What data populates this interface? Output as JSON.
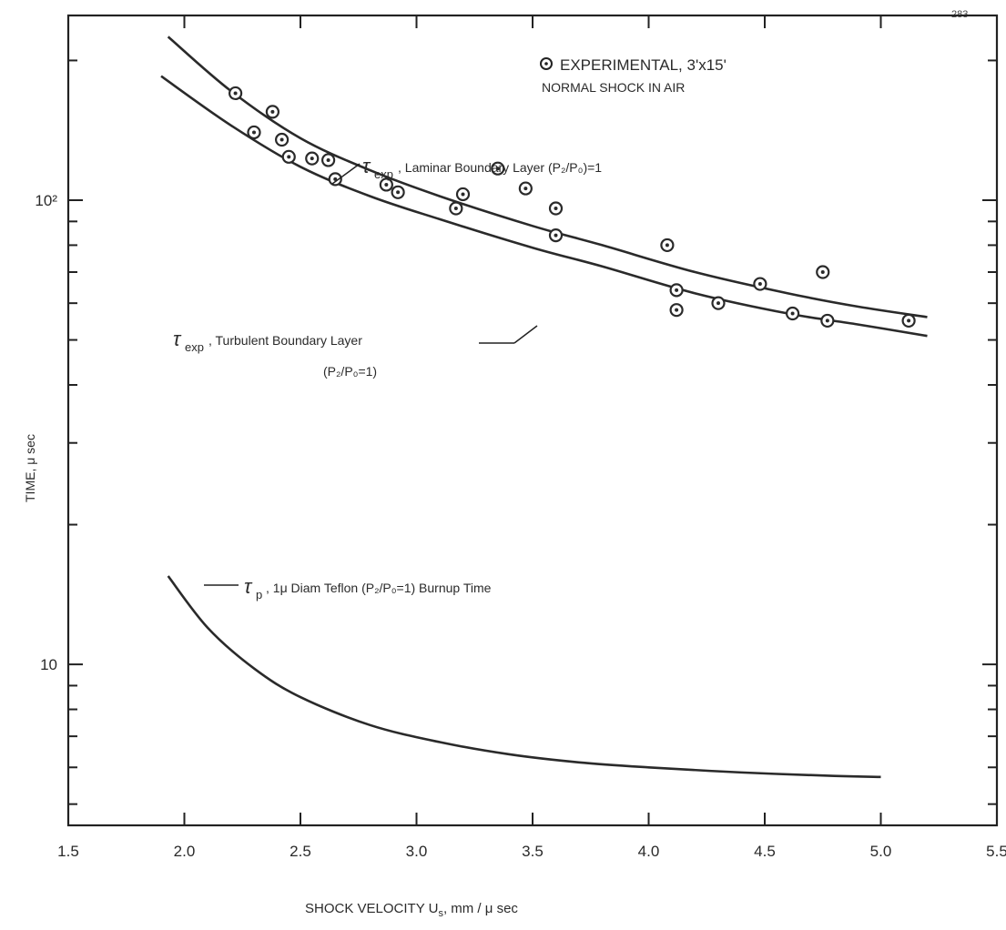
{
  "page_number": "283",
  "chart_data": {
    "type": "line",
    "xlabel": "SHOCK VELOCITY U",
    "xlabel_sub": "s",
    "xlabel_unit": ", mm / μ sec",
    "ylabel": "TIME, μ sec",
    "xlim": [
      1.5,
      5.5
    ],
    "ylim": [
      4.5,
      250
    ],
    "y_scale": "log",
    "x_ticks": [
      "1.5",
      "2.0",
      "2.5",
      "3.0",
      "3.5",
      "4.0",
      "4.5",
      "5.0",
      "5.5"
    ],
    "y_major_ticks": [
      {
        "value": 10,
        "label": "10"
      },
      {
        "value": 100,
        "label": "10²"
      }
    ],
    "legend": {
      "marker_text": "EXPERIMENTAL, 3'x15'",
      "line2": "NORMAL SHOCK IN AIR"
    },
    "series": [
      {
        "name": "τexp, Laminar Boundary Layer (P2/P0)=1",
        "x": [
          1.93,
          2.2,
          2.5,
          2.8,
          3.1,
          3.5,
          3.8,
          4.2,
          4.6,
          4.9,
          5.2
        ],
        "y": [
          225,
          172,
          136,
          116,
          102,
          88,
          80,
          70,
          63,
          59,
          56
        ]
      },
      {
        "name": "τexp, Turbulent Boundary Layer (P2/P0=1)",
        "x": [
          1.9,
          2.2,
          2.5,
          2.8,
          3.1,
          3.5,
          3.8,
          4.2,
          4.6,
          4.9,
          5.2
        ],
        "y": [
          185,
          145,
          118,
          102,
          91,
          79,
          72,
          63,
          57,
          54,
          51
        ]
      },
      {
        "name": "τp, 1μ Diam Teflon (P2/P0=1) Burnup Time",
        "x": [
          1.93,
          2.1,
          2.3,
          2.5,
          2.8,
          3.1,
          3.4,
          3.7,
          4.0,
          4.4,
          4.8,
          5.0
        ],
        "y": [
          15.5,
          12.0,
          9.8,
          8.5,
          7.4,
          6.8,
          6.4,
          6.15,
          6.0,
          5.85,
          5.75,
          5.72
        ]
      }
    ],
    "experimental_points": {
      "x": [
        2.22,
        2.3,
        2.38,
        2.42,
        2.45,
        2.55,
        2.62,
        2.65,
        2.87,
        2.92,
        3.17,
        3.2,
        3.35,
        3.47,
        3.6,
        3.6,
        4.08,
        4.12,
        4.12,
        4.3,
        4.48,
        4.62,
        4.75,
        4.77,
        5.12
      ],
      "y": [
        170,
        140,
        155,
        135,
        124,
        123,
        122,
        111,
        108,
        104,
        96,
        103,
        117,
        106,
        96,
        84,
        80,
        64,
        58,
        60,
        66,
        57,
        70,
        55,
        55
      ]
    },
    "annotations": [
      {
        "symbol": "τ",
        "sub": "exp",
        "text": ", Laminar Boundary Layer (P₂/P₀)=1"
      },
      {
        "symbol": "τ",
        "sub": "exp",
        "text": ", Turbulent Boundary Layer",
        "text2": "(P₂/P₀=1)"
      },
      {
        "symbol": "τ",
        "sub": "p",
        "text": ",  1μ Diam Teflon (P₂/P₀=1) Burnup Time"
      }
    ],
    "grid": false
  }
}
